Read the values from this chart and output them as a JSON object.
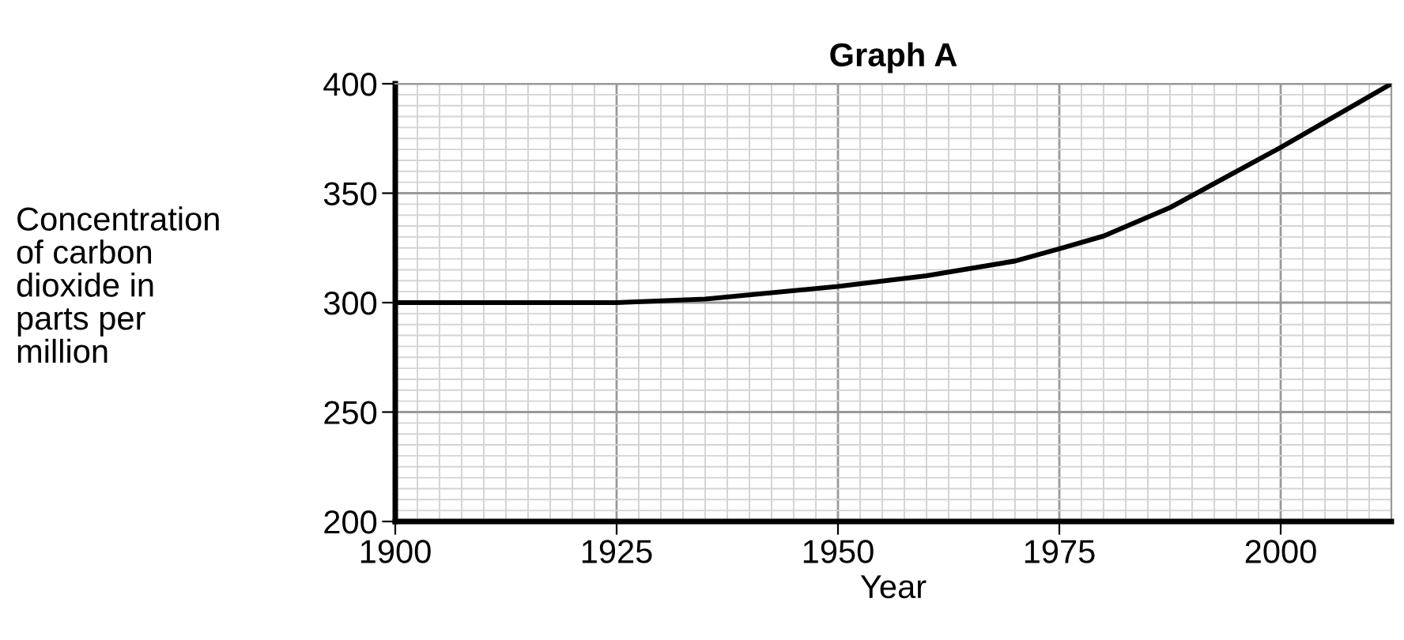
{
  "chart_data": {
    "type": "line",
    "title": "Graph A",
    "xlabel": "Year",
    "ylabel": "Concentration\nof carbon\ndioxide in\nparts per\nmillion",
    "x": [
      1900,
      1925,
      1935,
      1950,
      1960,
      1970,
      1975,
      1980,
      1987.5,
      2000,
      2012.5
    ],
    "series": [
      {
        "color": "#000000",
        "values": [
          300,
          300,
          301.6,
          307.4,
          312.3,
          319,
          324.6,
          330.4,
          343.4,
          370.9,
          400
        ]
      }
    ],
    "xlim": [
      1900,
      2012.5
    ],
    "ylim": [
      200,
      400
    ],
    "xticks": [
      1900,
      1925,
      1950,
      1975,
      2000
    ],
    "yticks": [
      200,
      250,
      300,
      350,
      400
    ],
    "grid": true,
    "marker": "none",
    "line_style": "solid"
  }
}
